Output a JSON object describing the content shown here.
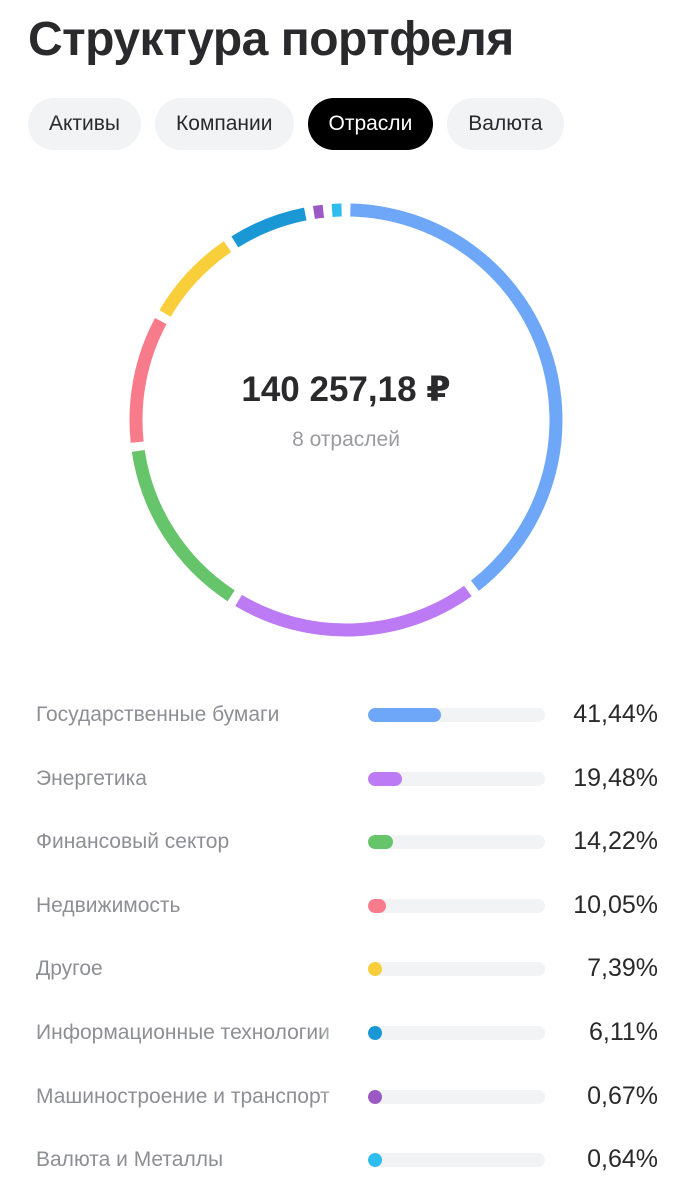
{
  "header": {
    "title": "Структура портфеля"
  },
  "tabs": [
    {
      "label": "Активы",
      "active": false
    },
    {
      "label": "Компании",
      "active": false
    },
    {
      "label": "Отрасли",
      "active": true
    },
    {
      "label": "Валюта",
      "active": false
    }
  ],
  "summary": {
    "total": "140 257,18 ₽",
    "count_label": "8 отраслей"
  },
  "chart_data": {
    "type": "pie",
    "series": [
      {
        "name": "Государственные бумаги",
        "value": 41.44,
        "label": "41,44%",
        "color": "#6ea7f8"
      },
      {
        "name": "Энергетика",
        "value": 19.48,
        "label": "19,48%",
        "color": "#bc7af4"
      },
      {
        "name": "Финансовый сектор",
        "value": 14.22,
        "label": "14,22%",
        "color": "#66c46b"
      },
      {
        "name": "Недвижимость",
        "value": 10.05,
        "label": "10,05%",
        "color": "#f77b8b"
      },
      {
        "name": "Другое",
        "value": 7.39,
        "label": "7,39%",
        "color": "#f8cf3b"
      },
      {
        "name": "Информационные технологии",
        "value": 6.11,
        "label": "6,11%",
        "color": "#1a98d5"
      },
      {
        "name": "Машиностроение и транспорт",
        "value": 0.67,
        "label": "0,67%",
        "color": "#9b59c6"
      },
      {
        "name": "Валюта и Металлы",
        "value": 0.64,
        "label": "0,64%",
        "color": "#2fbdf0"
      }
    ]
  }
}
